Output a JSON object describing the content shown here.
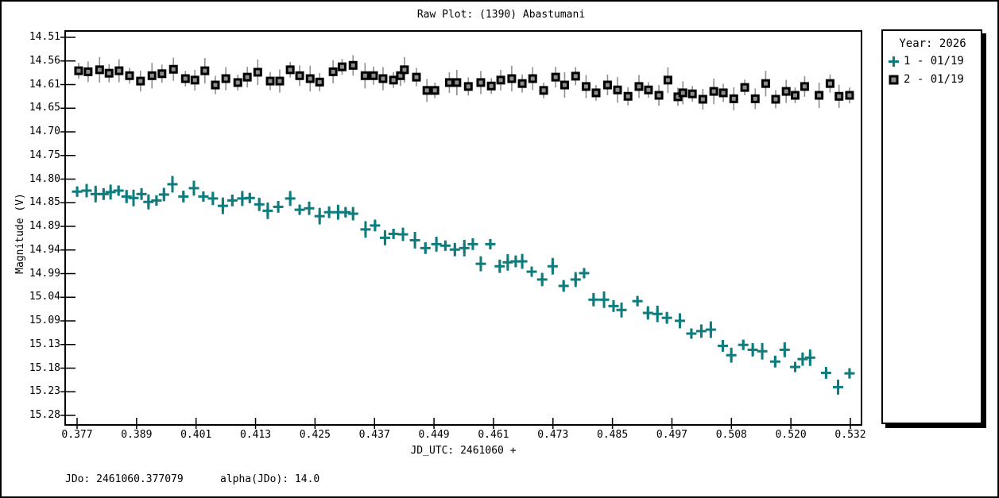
{
  "window": {
    "title": "Raw Plot: (1390) Abastumani"
  },
  "footer": {
    "jdo_label": "JDo: 2461060.377079",
    "alpha_label": "alpha(JDo): 14.0"
  },
  "legend": {
    "title": "Year: 2026",
    "entries": [
      {
        "label": "1 - 01/19",
        "marker": "plus",
        "color": "#0e7c7c"
      },
      {
        "label": "2 - 01/19",
        "marker": "square",
        "color": "#8e8e8e"
      }
    ]
  },
  "chart_data": {
    "type": "scatter",
    "title": "Raw Plot: (1390) Abastumani",
    "xlabel": "JD_UTC: 2461060 +",
    "ylabel": "Magnitude (V)",
    "legend_title": "Year: 2026",
    "legend_position": "right",
    "grid": false,
    "y_axis_inverted_magnitude": true,
    "xlim": [
      0.3746,
      0.5342
    ],
    "ylim": [
      14.497,
      15.299
    ],
    "x_tick_labels": [
      "0.377",
      "0.389",
      "0.401",
      "0.413",
      "0.425",
      "0.437",
      "0.449",
      "0.461",
      "0.473",
      "0.485",
      "0.497",
      "0.508",
      "0.520",
      "0.532"
    ],
    "y_tick_labels": [
      "14.51",
      "14.56",
      "14.61",
      "14.65",
      "14.70",
      "14.75",
      "14.80",
      "14.85",
      "14.89",
      "14.94",
      "14.99",
      "15.04",
      "15.09",
      "15.13",
      "15.18",
      "15.23",
      "15.28"
    ],
    "series": [
      {
        "name": "1 - 01/19",
        "marker": "plus",
        "color": "#0e7c7c",
        "err_mag": 0.013,
        "points": [
          [
            0.377,
            14.824
          ],
          [
            0.3789,
            14.822
          ],
          [
            0.3807,
            14.829
          ],
          [
            0.3823,
            14.829
          ],
          [
            0.3837,
            14.825
          ],
          [
            0.3853,
            14.822
          ],
          [
            0.3869,
            14.834
          ],
          [
            0.3883,
            14.837
          ],
          [
            0.3899,
            14.829
          ],
          [
            0.3913,
            14.845
          ],
          [
            0.3929,
            14.842
          ],
          [
            0.3944,
            14.83
          ],
          [
            0.3961,
            14.809
          ],
          [
            0.3983,
            14.834
          ],
          [
            0.4004,
            14.817
          ],
          [
            0.4023,
            14.834
          ],
          [
            0.4042,
            14.838
          ],
          [
            0.4062,
            14.853
          ],
          [
            0.4081,
            14.842
          ],
          [
            0.4101,
            14.838
          ],
          [
            0.4116,
            14.837
          ],
          [
            0.4135,
            14.85
          ],
          [
            0.4152,
            14.863
          ],
          [
            0.4173,
            14.855
          ],
          [
            0.4197,
            14.838
          ],
          [
            0.4216,
            14.861
          ],
          [
            0.4235,
            14.858
          ],
          [
            0.4256,
            14.874
          ],
          [
            0.4275,
            14.866
          ],
          [
            0.4293,
            14.866
          ],
          [
            0.4308,
            14.866
          ],
          [
            0.4323,
            14.869
          ],
          [
            0.4348,
            14.901
          ],
          [
            0.4367,
            14.893
          ],
          [
            0.4387,
            14.918
          ],
          [
            0.4404,
            14.91
          ],
          [
            0.4423,
            14.911
          ],
          [
            0.4447,
            14.923
          ],
          [
            0.4468,
            14.939
          ],
          [
            0.449,
            14.931
          ],
          [
            0.4508,
            14.934
          ],
          [
            0.4527,
            14.942
          ],
          [
            0.4546,
            14.939
          ],
          [
            0.4563,
            14.931
          ],
          [
            0.4579,
            14.971
          ],
          [
            0.4598,
            14.931
          ],
          [
            0.4617,
            14.976
          ],
          [
            0.4633,
            14.968
          ],
          [
            0.4649,
            14.966
          ],
          [
            0.4662,
            14.966
          ],
          [
            0.4681,
            14.987
          ],
          [
            0.4702,
            15.003
          ],
          [
            0.4723,
            14.976
          ],
          [
            0.4745,
            15.016
          ],
          [
            0.4769,
            15.003
          ],
          [
            0.4786,
            14.99
          ],
          [
            0.4805,
            15.044
          ],
          [
            0.4826,
            15.044
          ],
          [
            0.4845,
            15.057
          ],
          [
            0.4861,
            15.065
          ],
          [
            0.4893,
            15.047
          ],
          [
            0.4914,
            15.071
          ],
          [
            0.4933,
            15.073
          ],
          [
            0.4952,
            15.081
          ],
          [
            0.4978,
            15.087
          ],
          [
            0.5001,
            15.113
          ],
          [
            0.5021,
            15.108
          ],
          [
            0.504,
            15.105
          ],
          [
            0.5064,
            15.138
          ],
          [
            0.5081,
            15.157
          ],
          [
            0.5105,
            15.136
          ],
          [
            0.5124,
            15.146
          ],
          [
            0.5143,
            15.149
          ],
          [
            0.5169,
            15.17
          ],
          [
            0.5188,
            15.146
          ],
          [
            0.5209,
            15.181
          ],
          [
            0.5224,
            15.165
          ],
          [
            0.5239,
            15.162
          ],
          [
            0.5271,
            15.193
          ],
          [
            0.5295,
            15.222
          ],
          [
            0.5318,
            15.194
          ]
        ]
      },
      {
        "name": "2 - 01/19",
        "marker": "square",
        "color": "#8e8e8e",
        "err_mag": 0.02,
        "points": [
          [
            0.3773,
            14.578
          ],
          [
            0.3792,
            14.58
          ],
          [
            0.3815,
            14.576
          ],
          [
            0.3834,
            14.583
          ],
          [
            0.3854,
            14.578
          ],
          [
            0.3875,
            14.588
          ],
          [
            0.3897,
            14.599
          ],
          [
            0.392,
            14.588
          ],
          [
            0.394,
            14.584
          ],
          [
            0.3963,
            14.575
          ],
          [
            0.3987,
            14.594
          ],
          [
            0.4006,
            14.597
          ],
          [
            0.4026,
            14.578
          ],
          [
            0.4047,
            14.607
          ],
          [
            0.4068,
            14.594
          ],
          [
            0.4092,
            14.602
          ],
          [
            0.4111,
            14.591
          ],
          [
            0.4132,
            14.581
          ],
          [
            0.4157,
            14.599
          ],
          [
            0.4176,
            14.599
          ],
          [
            0.4197,
            14.576
          ],
          [
            0.4216,
            14.588
          ],
          [
            0.4237,
            14.594
          ],
          [
            0.4256,
            14.601
          ],
          [
            0.4283,
            14.58
          ],
          [
            0.4301,
            14.57
          ],
          [
            0.4323,
            14.567
          ],
          [
            0.4347,
            14.588
          ],
          [
            0.4364,
            14.588
          ],
          [
            0.4383,
            14.594
          ],
          [
            0.4404,
            14.597
          ],
          [
            0.4418,
            14.588
          ],
          [
            0.4426,
            14.576
          ],
          [
            0.445,
            14.591
          ],
          [
            0.4471,
            14.618
          ],
          [
            0.4487,
            14.618
          ],
          [
            0.4516,
            14.602
          ],
          [
            0.4531,
            14.602
          ],
          [
            0.4554,
            14.61
          ],
          [
            0.4579,
            14.602
          ],
          [
            0.46,
            14.609
          ],
          [
            0.4619,
            14.597
          ],
          [
            0.4641,
            14.594
          ],
          [
            0.4662,
            14.604
          ],
          [
            0.4683,
            14.594
          ],
          [
            0.4705,
            14.618
          ],
          [
            0.4729,
            14.591
          ],
          [
            0.4747,
            14.607
          ],
          [
            0.4769,
            14.589
          ],
          [
            0.479,
            14.61
          ],
          [
            0.481,
            14.623
          ],
          [
            0.4833,
            14.607
          ],
          [
            0.4853,
            14.617
          ],
          [
            0.4874,
            14.63
          ],
          [
            0.4896,
            14.61
          ],
          [
            0.4915,
            14.617
          ],
          [
            0.4936,
            14.628
          ],
          [
            0.4954,
            14.597
          ],
          [
            0.4974,
            14.631
          ],
          [
            0.4984,
            14.623
          ],
          [
            0.5003,
            14.625
          ],
          [
            0.5024,
            14.636
          ],
          [
            0.5046,
            14.62
          ],
          [
            0.5065,
            14.623
          ],
          [
            0.5086,
            14.635
          ],
          [
            0.5108,
            14.612
          ],
          [
            0.5129,
            14.635
          ],
          [
            0.515,
            14.604
          ],
          [
            0.517,
            14.636
          ],
          [
            0.5191,
            14.62
          ],
          [
            0.5209,
            14.628
          ],
          [
            0.5228,
            14.61
          ],
          [
            0.5257,
            14.628
          ],
          [
            0.5279,
            14.604
          ],
          [
            0.5297,
            14.63
          ],
          [
            0.5318,
            14.628
          ]
        ]
      }
    ]
  }
}
